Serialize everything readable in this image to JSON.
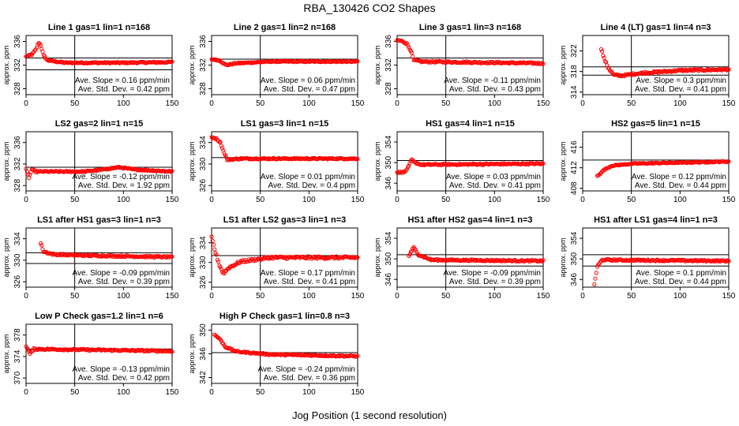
{
  "figure": {
    "title": "RBA_130426  CO2 Shapes",
    "xlabel": "Jog Position (1 second resolution)"
  },
  "colors": {
    "points": "#ff0000",
    "axes": "#000000"
  },
  "chart_data": [
    {
      "type": "scatter",
      "title": "Line 1 gas=1 lin=1 n=168",
      "ylabel": "approx. ppm",
      "xlim": [
        0,
        150
      ],
      "ylim": [
        327,
        337
      ],
      "yticks": [
        328,
        332,
        336
      ],
      "xticks": [
        0,
        50,
        100,
        150
      ],
      "vline": 50,
      "hlines": [
        333.2,
        331.2
      ],
      "slope_text": "Ave. Slope = 0.16 ppm/min",
      "sd_text": "Ave. Std. Dev. = 0.42 ppm",
      "trans": [
        [
          0,
          333.4
        ],
        [
          6,
          333.8
        ],
        [
          10,
          334.6
        ],
        [
          13,
          335.8
        ],
        [
          15,
          335.4
        ],
        [
          18,
          333.6
        ],
        [
          22,
          332.8
        ],
        [
          40,
          332.4
        ],
        [
          100,
          332.4
        ],
        [
          150,
          332.5
        ]
      ],
      "noise": 0.12
    },
    {
      "type": "scatter",
      "title": "Line 2 gas=1 lin=2 n=168",
      "ylabel": "approx. ppm",
      "xlim": [
        0,
        150
      ],
      "ylim": [
        327,
        337
      ],
      "yticks": [
        328,
        332,
        336
      ],
      "xticks": [
        0,
        50,
        100,
        150
      ],
      "vline": 50,
      "hlines": [
        333.0
      ],
      "slope_text": "Ave. Slope = 0.06 ppm/min",
      "sd_text": "Ave. Std. Dev. = 0.47 ppm",
      "trans": [
        [
          0,
          333.0
        ],
        [
          8,
          332.8
        ],
        [
          15,
          332.0
        ],
        [
          25,
          332.3
        ],
        [
          60,
          332.6
        ],
        [
          150,
          332.6
        ]
      ],
      "noise": 0.1
    },
    {
      "type": "scatter",
      "title": "Line 3 gas=1 lin=3 n=168",
      "ylabel": "approx. ppm",
      "xlim": [
        0,
        150
      ],
      "ylim": [
        327,
        337
      ],
      "yticks": [
        328,
        332,
        336
      ],
      "xticks": [
        0,
        50,
        100,
        150
      ],
      "vline": 50,
      "hlines": [
        333.2
      ],
      "slope_text": "Ave. Slope = -0.11 ppm/min",
      "sd_text": "Ave. Std. Dev. = 0.43 ppm",
      "trans": [
        [
          0,
          336.2
        ],
        [
          6,
          336.0
        ],
        [
          10,
          335.6
        ],
        [
          14,
          334.5
        ],
        [
          17,
          332.8
        ],
        [
          25,
          332.6
        ],
        [
          150,
          332.3
        ]
      ],
      "noise": 0.15
    },
    {
      "type": "scatter",
      "title": "Line 4 (LT) gas=1 lin=4 n=3",
      "ylabel": "approx. ppm",
      "xlim": [
        0,
        150
      ],
      "ylim": [
        313.5,
        325
      ],
      "yticks": [
        314,
        318,
        322
      ],
      "xticks": [
        0,
        50,
        100,
        150
      ],
      "vline": 50,
      "hlines": [
        318.9,
        317.3
      ],
      "slope_text": "Ave. Slope = 0.3 ppm/min",
      "sd_text": "Ave. Std. Dev. = 0.41 ppm",
      "x_start": 19,
      "trans": [
        [
          19,
          322.5
        ],
        [
          22,
          320.5
        ],
        [
          26,
          318.8
        ],
        [
          32,
          317.3
        ],
        [
          40,
          317.2
        ],
        [
          60,
          317.7
        ],
        [
          100,
          318.2
        ],
        [
          150,
          318.4
        ]
      ],
      "noise": 0.18
    },
    {
      "type": "scatter",
      "title": "LS2 gas=2 lin=1 n=15",
      "ylabel": "approx. ppm",
      "xlim": [
        0,
        150
      ],
      "ylim": [
        327,
        338
      ],
      "yticks": [
        328,
        332,
        336
      ],
      "xticks": [
        0,
        50,
        100,
        150
      ],
      "vline": 50,
      "hlines": [
        331.4
      ],
      "slope_text": "Ave. Slope = -0.12 ppm/min",
      "sd_text": "Ave. Std. Dev. = 1.92 ppm",
      "trans": [
        [
          0,
          331.0
        ],
        [
          3,
          329.5
        ],
        [
          6,
          331.0
        ],
        [
          10,
          330.6
        ],
        [
          60,
          330.6
        ],
        [
          80,
          331.0
        ],
        [
          95,
          331.4
        ],
        [
          110,
          331.0
        ],
        [
          150,
          330.6
        ]
      ],
      "noise": 0.12
    },
    {
      "type": "scatter",
      "title": "LS1 gas=3 lin=1 n=15",
      "ylabel": "approx. ppm",
      "xlim": [
        0,
        150
      ],
      "ylim": [
        325,
        336
      ],
      "yticks": [
        326,
        330,
        334
      ],
      "xticks": [
        0,
        50,
        100,
        150
      ],
      "vline": 50,
      "hlines": [
        331.2
      ],
      "slope_text": "Ave. Slope = 0.01 ppm/min",
      "sd_text": "Ave. Std. Dev. = 0.4 ppm",
      "trans": [
        [
          0,
          335.0
        ],
        [
          5,
          334.7
        ],
        [
          9,
          334.0
        ],
        [
          12,
          332.5
        ],
        [
          16,
          330.8
        ],
        [
          30,
          331.0
        ],
        [
          150,
          331.0
        ]
      ],
      "noise": 0.12
    },
    {
      "type": "scatter",
      "title": "HS1 gas=4 lin=1 n=15",
      "ylabel": "approx. ppm",
      "xlim": [
        0,
        150
      ],
      "ylim": [
        344.5,
        356
      ],
      "yticks": [
        346,
        350,
        354
      ],
      "xticks": [
        0,
        50,
        100,
        150
      ],
      "vline": 50,
      "hlines": [
        350.4
      ],
      "slope_text": "Ave. Slope = 0.03 ppm/min",
      "sd_text": "Ave. Std. Dev. = 0.41 ppm",
      "trans": [
        [
          0,
          348.1
        ],
        [
          8,
          348.2
        ],
        [
          12,
          349.3
        ],
        [
          15,
          350.6
        ],
        [
          18,
          350.0
        ],
        [
          25,
          349.6
        ],
        [
          150,
          349.8
        ]
      ],
      "noise": 0.14
    },
    {
      "type": "scatter",
      "title": "HS2 gas=5 lin=1 n=15",
      "ylabel": "approx. ppm",
      "xlim": [
        0,
        150
      ],
      "ylim": [
        407.5,
        419
      ],
      "yticks": [
        408,
        412,
        416
      ],
      "xticks": [
        0,
        50,
        100,
        150
      ],
      "vline": 50,
      "hlines": [
        413.5
      ],
      "slope_text": "Ave. Slope = 0.12 ppm/min",
      "sd_text": "Ave. Std. Dev. = 0.44 ppm",
      "x_start": 15,
      "trans": [
        [
          15,
          410.4
        ],
        [
          22,
          411.6
        ],
        [
          30,
          412.4
        ],
        [
          50,
          412.8
        ],
        [
          150,
          413.2
        ]
      ],
      "noise": 0.1
    },
    {
      "type": "scatter",
      "title": "LS1 after HS1 gas=3 lin=1 n=3",
      "ylabel": "approx. ppm",
      "xlim": [
        0,
        150
      ],
      "ylim": [
        325,
        336
      ],
      "yticks": [
        326,
        330,
        334
      ],
      "xticks": [
        0,
        50,
        100,
        150
      ],
      "vline": 50,
      "hlines": [
        331.4,
        329.4
      ],
      "slope_text": "Ave. Slope = -0.09 ppm/min",
      "sd_text": "Ave. Std. Dev. = 0.39 ppm",
      "x_start": 15,
      "trans": [
        [
          15,
          333.2
        ],
        [
          18,
          331.6
        ],
        [
          28,
          331.1
        ],
        [
          60,
          330.9
        ],
        [
          150,
          330.6
        ]
      ],
      "noise": 0.15
    },
    {
      "type": "scatter",
      "title": "LS1 after LS2 gas=3 lin=1 n=3",
      "ylabel": "approx. ppm",
      "xlim": [
        0,
        150
      ],
      "ylim": [
        325,
        337
      ],
      "yticks": [
        326,
        330,
        334
      ],
      "xticks": [
        0,
        50,
        100,
        150
      ],
      "vline": 50,
      "hlines": [
        331.4
      ],
      "slope_text": "Ave. Slope = 0.17 ppm/min",
      "sd_text": "Ave. Std. Dev. = 0.41 ppm",
      "trans": [
        [
          0,
          335.0
        ],
        [
          4,
          332.0
        ],
        [
          8,
          329.5
        ],
        [
          12,
          327.8
        ],
        [
          18,
          329.0
        ],
        [
          30,
          330.2
        ],
        [
          60,
          331.0
        ],
        [
          150,
          331.0
        ]
      ],
      "noise": 0.25
    },
    {
      "type": "scatter",
      "title": "HS1 after HS2 gas=4 lin=1 n=3",
      "ylabel": "approx. ppm",
      "xlim": [
        0,
        150
      ],
      "ylim": [
        344.5,
        356
      ],
      "yticks": [
        346,
        350,
        354
      ],
      "xticks": [
        0,
        50,
        100,
        150
      ],
      "vline": 50,
      "hlines": [
        350.8,
        348.6
      ],
      "slope_text": "Ave. Slope = -0.09 ppm/min",
      "sd_text": "Ave. Std. Dev. = 0.39 ppm",
      "x_start": 12,
      "trans": [
        [
          12,
          350.6
        ],
        [
          17,
          352.2
        ],
        [
          22,
          350.8
        ],
        [
          35,
          349.8
        ],
        [
          150,
          349.6
        ]
      ],
      "noise": 0.15
    },
    {
      "type": "scatter",
      "title": "HS1 after LS1 gas=4 lin=1 n=3",
      "ylabel": "approx. ppm",
      "xlim": [
        0,
        150
      ],
      "ylim": [
        344.5,
        356
      ],
      "yticks": [
        346,
        350,
        354
      ],
      "xticks": [
        0,
        50,
        100,
        150
      ],
      "vline": 50,
      "hlines": [
        350.8,
        348.6
      ],
      "slope_text": "Ave. Slope = 0.1 ppm/min",
      "sd_text": "Ave. Std. Dev. = 0.44 ppm",
      "x_start": 12,
      "trans": [
        [
          12,
          345.0
        ],
        [
          15,
          348.5
        ],
        [
          20,
          349.8
        ],
        [
          150,
          349.6
        ]
      ],
      "noise": 0.15
    },
    {
      "type": "scatter",
      "title": "Low P Check gas=1.2 lin=1 n=6",
      "ylabel": "approx. ppm",
      "xlim": [
        0,
        150
      ],
      "ylim": [
        369,
        380
      ],
      "yticks": [
        370,
        374,
        378
      ],
      "xticks": [
        0,
        50,
        100,
        150
      ],
      "vline": 50,
      "hlines": [
        375.4
      ],
      "slope_text": "Ave. Slope = -0.13 ppm/min",
      "sd_text": "Ave. Std. Dev. = 0.42 ppm",
      "trans": [
        [
          0,
          376.0
        ],
        [
          4,
          374.5
        ],
        [
          8,
          375.4
        ],
        [
          150,
          375.0
        ]
      ],
      "noise": 0.15
    },
    {
      "type": "scatter",
      "title": "High P Check gas=1 lin=0.8 n=3",
      "ylabel": "approx. ppm",
      "xlim": [
        0,
        150
      ],
      "ylim": [
        341,
        351
      ],
      "yticks": [
        342,
        346,
        350
      ],
      "xticks": [
        0,
        50,
        100,
        150
      ],
      "vline": 50,
      "hlines": [
        346.2
      ],
      "slope_text": "Ave. Slope = -0.24 ppm/min",
      "sd_text": "Ave. Std. Dev. = 0.36 ppm",
      "x_start": 3,
      "trans": [
        [
          3,
          349.2
        ],
        [
          8,
          348.6
        ],
        [
          14,
          347.2
        ],
        [
          25,
          346.4
        ],
        [
          60,
          345.9
        ],
        [
          150,
          345.6
        ]
      ],
      "noise": 0.12
    }
  ]
}
